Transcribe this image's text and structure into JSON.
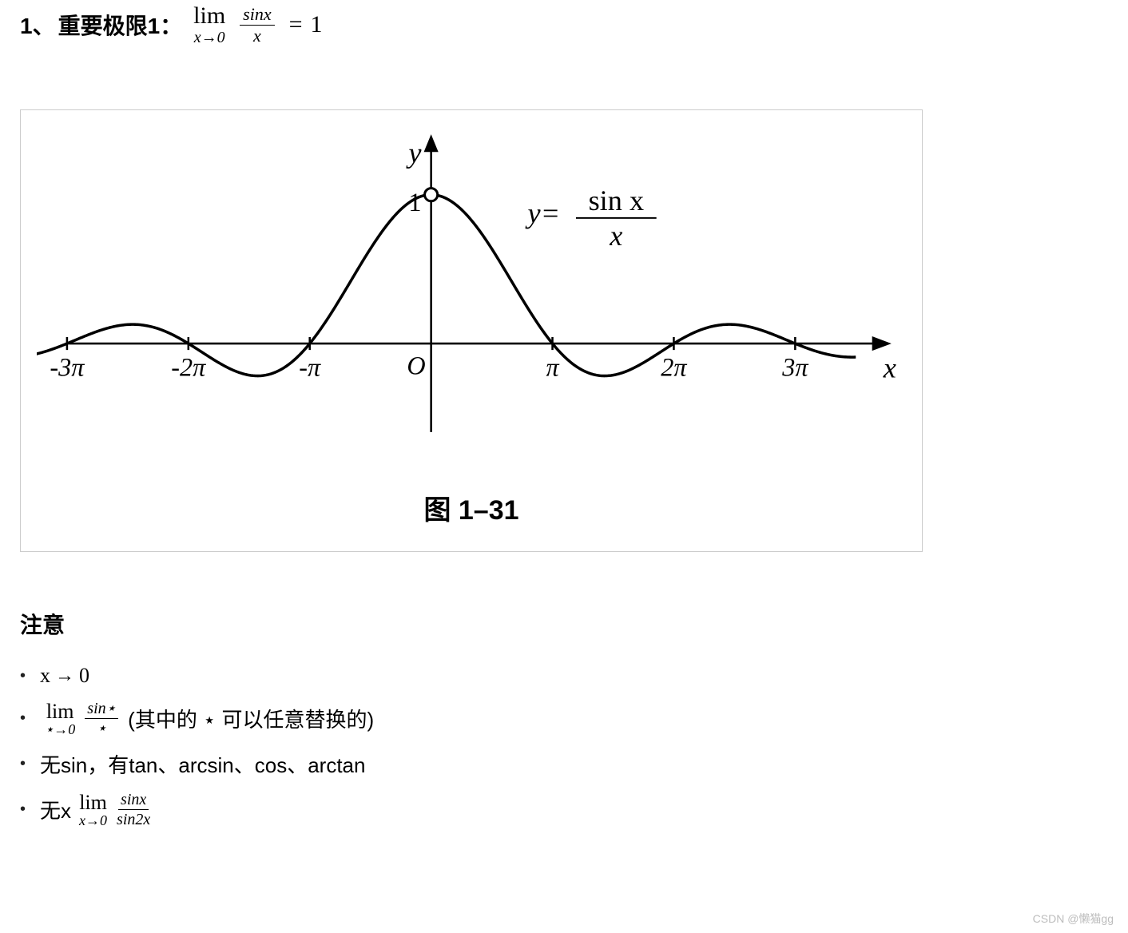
{
  "heading": {
    "number": "1、",
    "label": "重要极限1：",
    "limit_symbol": "lim",
    "limit_sub": "x→0",
    "frac_num": "sinx",
    "frac_den": "x",
    "eq": "=",
    "rhs": "1"
  },
  "figure": {
    "caption": "图 1–31",
    "y_label": "y",
    "y_tick": "1",
    "origin": "O",
    "x_label": "x",
    "func_label_prefix": "y=",
    "func_frac_num": "sin x",
    "func_frac_den": "x",
    "xticks": [
      "-3π",
      "-2π",
      "-π",
      "π",
      "2π",
      "3π"
    ],
    "plot": {
      "stroke": "#000000",
      "stroke_width": 3.5,
      "axis_stroke": "#000000",
      "axis_width": 2.5,
      "open_point_fill": "#ffffff",
      "open_point_stroke": "#000000",
      "background": "#ffffff",
      "font_family_serif": "Times New Roman",
      "tick_font_size": 32,
      "label_font_size": 36,
      "func_label_font_size": 36
    }
  },
  "attention_title": "注意",
  "notes": {
    "item1": {
      "x": "x",
      "arrow": "→",
      "zero": "0"
    },
    "item2": {
      "lim": "lim",
      "sub": "⋆→0",
      "frac_num": "sin⋆",
      "frac_den": "⋆",
      "paren_open": "(其中的 ⋆ 可以任意替换的)",
      "paren_close": ""
    },
    "item3": {
      "text": "无sin，有tan、arcsin、cos、arctan"
    },
    "item4": {
      "prefix": "无x",
      "lim": "lim",
      "sub": "x→0",
      "frac_num": "sinx",
      "frac_den": "sin2x"
    }
  },
  "watermark": "CSDN @懒猫gg"
}
